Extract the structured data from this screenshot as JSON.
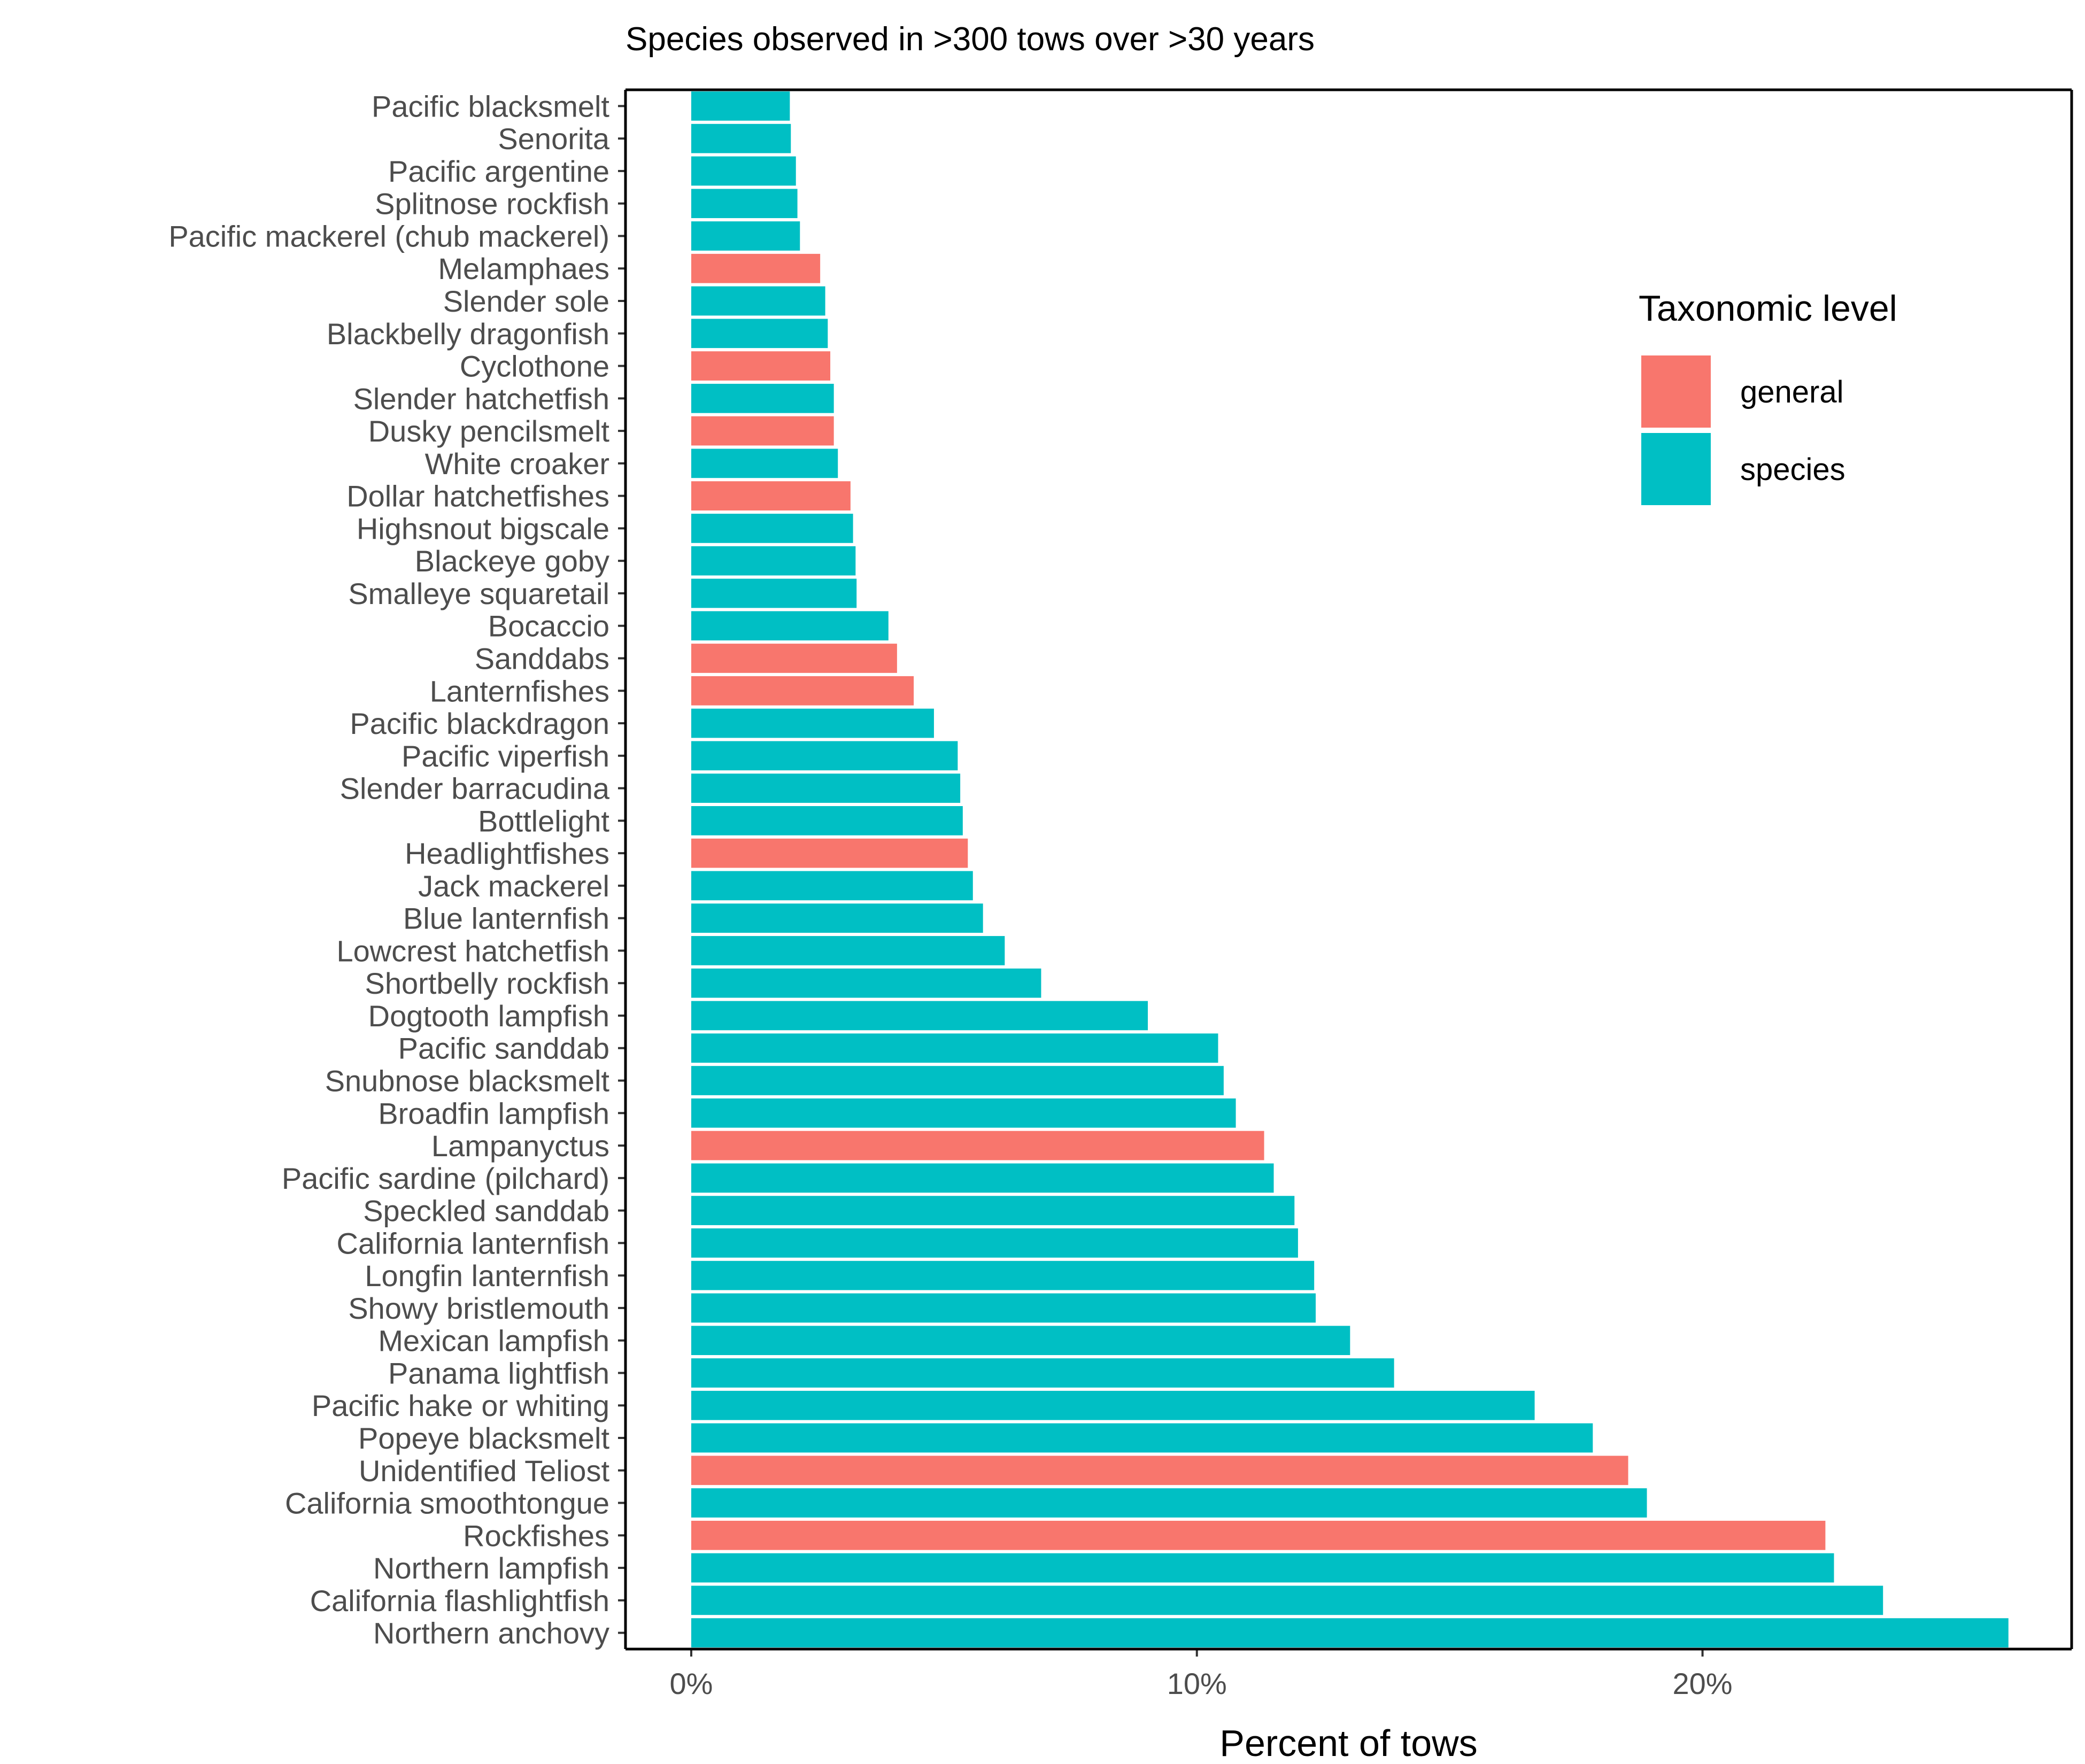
{
  "chart_data": {
    "type": "bar",
    "orientation": "horizontal",
    "title": "Species observed in >300 tows over >30 years",
    "xlabel": "Percent of tows",
    "ylabel": "",
    "xlim": [
      -1.3,
      27.3
    ],
    "xticks": [
      0,
      10,
      20
    ],
    "xtick_labels": [
      "0%",
      "10%",
      "20%"
    ],
    "grid": false,
    "legend": {
      "title": "Taxonomic level",
      "placement": "top-right",
      "entries": [
        {
          "name": "general",
          "color": "#F8766D"
        },
        {
          "name": "species",
          "color": "#00BFC4"
        }
      ]
    },
    "bars": [
      {
        "name": "Pacific blacksmelt",
        "value": 1.95,
        "level": "species"
      },
      {
        "name": "Senorita",
        "value": 1.97,
        "level": "species"
      },
      {
        "name": "Pacific argentine",
        "value": 2.07,
        "level": "species"
      },
      {
        "name": "Splitnose rockfish",
        "value": 2.1,
        "level": "species"
      },
      {
        "name": "Pacific mackerel (chub mackerel)",
        "value": 2.15,
        "level": "species"
      },
      {
        "name": "Melamphaes",
        "value": 2.55,
        "level": "general"
      },
      {
        "name": "Slender sole",
        "value": 2.65,
        "level": "species"
      },
      {
        "name": "Blackbelly dragonfish",
        "value": 2.7,
        "level": "species"
      },
      {
        "name": "Cyclothone",
        "value": 2.75,
        "level": "general"
      },
      {
        "name": "Slender hatchetfish",
        "value": 2.82,
        "level": "species"
      },
      {
        "name": "Dusky pencilsmelt",
        "value": 2.82,
        "level": "general"
      },
      {
        "name": "White croaker",
        "value": 2.9,
        "level": "species"
      },
      {
        "name": "Dollar hatchetfishes",
        "value": 3.15,
        "level": "general"
      },
      {
        "name": "Highsnout bigscale",
        "value": 3.2,
        "level": "species"
      },
      {
        "name": "Blackeye goby",
        "value": 3.25,
        "level": "species"
      },
      {
        "name": "Smalleye squaretail",
        "value": 3.27,
        "level": "species"
      },
      {
        "name": "Bocaccio",
        "value": 3.9,
        "level": "species"
      },
      {
        "name": "Sanddabs",
        "value": 4.07,
        "level": "general"
      },
      {
        "name": "Lanternfishes",
        "value": 4.4,
        "level": "general"
      },
      {
        "name": "Pacific blackdragon",
        "value": 4.8,
        "level": "species"
      },
      {
        "name": "Pacific viperfish",
        "value": 5.27,
        "level": "species"
      },
      {
        "name": "Slender barracudina",
        "value": 5.32,
        "level": "species"
      },
      {
        "name": "Bottlelight",
        "value": 5.37,
        "level": "species"
      },
      {
        "name": "Headlightfishes",
        "value": 5.47,
        "level": "general"
      },
      {
        "name": "Jack mackerel",
        "value": 5.57,
        "level": "species"
      },
      {
        "name": "Blue lanternfish",
        "value": 5.77,
        "level": "species"
      },
      {
        "name": "Lowcrest hatchetfish",
        "value": 6.2,
        "level": "species"
      },
      {
        "name": "Shortbelly rockfish",
        "value": 6.92,
        "level": "species"
      },
      {
        "name": "Dogtooth lampfish",
        "value": 9.03,
        "level": "species"
      },
      {
        "name": "Pacific sanddab",
        "value": 10.42,
        "level": "species"
      },
      {
        "name": "Snubnose blacksmelt",
        "value": 10.53,
        "level": "species"
      },
      {
        "name": "Broadfin lampfish",
        "value": 10.77,
        "level": "species"
      },
      {
        "name": "Lampanyctus",
        "value": 11.33,
        "level": "general"
      },
      {
        "name": "Pacific sardine (pilchard)",
        "value": 11.52,
        "level": "species"
      },
      {
        "name": "Speckled sanddab",
        "value": 11.93,
        "level": "species"
      },
      {
        "name": "California lanternfish",
        "value": 12.0,
        "level": "species"
      },
      {
        "name": "Longfin lanternfish",
        "value": 12.32,
        "level": "species"
      },
      {
        "name": "Showy bristlemouth",
        "value": 12.35,
        "level": "species"
      },
      {
        "name": "Mexican lampfish",
        "value": 13.03,
        "level": "species"
      },
      {
        "name": "Panama lightfish",
        "value": 13.9,
        "level": "species"
      },
      {
        "name": "Pacific hake or whiting",
        "value": 16.68,
        "level": "species"
      },
      {
        "name": "Popeye blacksmelt",
        "value": 17.83,
        "level": "species"
      },
      {
        "name": "Unidentified Teliost",
        "value": 18.53,
        "level": "general"
      },
      {
        "name": "California smoothtongue",
        "value": 18.9,
        "level": "species"
      },
      {
        "name": "Rockfishes",
        "value": 22.43,
        "level": "general"
      },
      {
        "name": "Northern lampfish",
        "value": 22.6,
        "level": "species"
      },
      {
        "name": "California flashlightfish",
        "value": 23.57,
        "level": "species"
      },
      {
        "name": "Northern anchovy",
        "value": 26.05,
        "level": "species"
      }
    ]
  }
}
